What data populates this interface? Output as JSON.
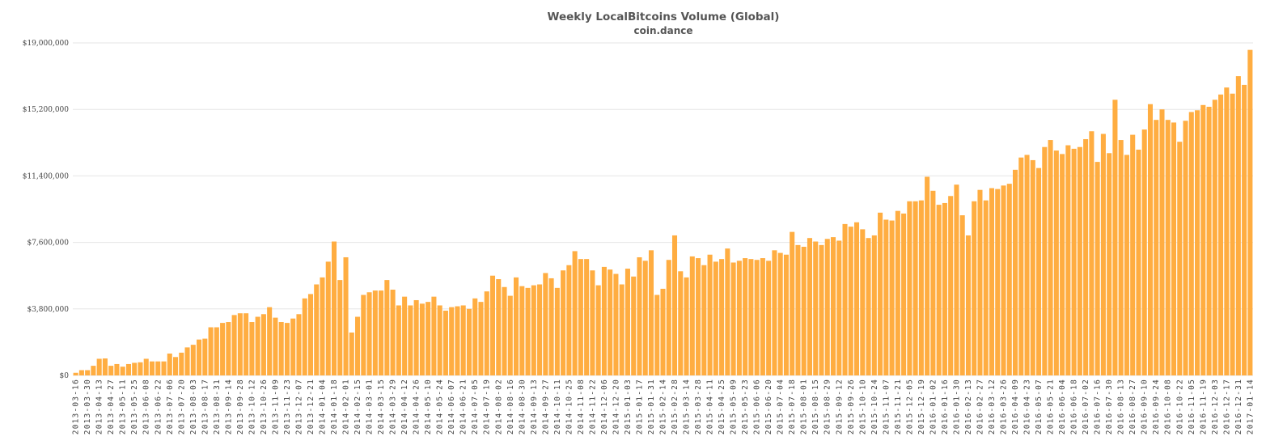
{
  "chart_data": {
    "type": "bar",
    "title": "Weekly LocalBitcoins Volume (Global)",
    "subtitle": "coin.dance",
    "xlabel": "",
    "ylabel": "",
    "ylim": [
      0,
      19000000
    ],
    "y_ticks": [
      "$0",
      "$3,800,000",
      "$7,600,000",
      "$11,400,000",
      "$15,200,000",
      "$19,000,000"
    ],
    "grid": true,
    "legend": "none",
    "bar_color": "#ffad41",
    "start_date": "2013-03-16",
    "interval_days": 7,
    "label_every": 2,
    "values_millions": [
      0.15,
      0.3,
      0.3,
      0.55,
      0.95,
      0.97,
      0.55,
      0.65,
      0.5,
      0.65,
      0.72,
      0.75,
      0.95,
      0.8,
      0.8,
      0.8,
      1.25,
      1.05,
      1.3,
      1.6,
      1.75,
      2.05,
      2.1,
      2.75,
      2.75,
      3.0,
      3.05,
      3.45,
      3.55,
      3.55,
      3.05,
      3.35,
      3.5,
      3.9,
      3.3,
      3.05,
      3.0,
      3.25,
      3.5,
      4.4,
      4.65,
      5.2,
      5.6,
      6.5,
      7.65,
      5.45,
      6.75,
      2.45,
      3.35,
      4.6,
      4.75,
      4.85,
      4.85,
      5.45,
      4.9,
      4.0,
      4.5,
      4.0,
      4.3,
      4.1,
      4.2,
      4.5,
      4.0,
      3.7,
      3.9,
      3.95,
      4.0,
      3.8,
      4.4,
      4.2,
      4.8,
      5.7,
      5.5,
      5.05,
      4.55,
      5.6,
      5.1,
      5.0,
      5.15,
      5.2,
      5.85,
      5.55,
      5.0,
      6.0,
      6.3,
      7.1,
      6.65,
      6.65,
      6.0,
      5.15,
      6.2,
      6.05,
      5.8,
      5.2,
      6.1,
      5.65,
      6.75,
      6.55,
      7.15,
      4.6,
      4.95,
      6.6,
      8.0,
      5.95,
      5.6,
      6.8,
      6.7,
      6.3,
      6.9,
      6.5,
      6.65,
      7.25,
      6.45,
      6.55,
      6.7,
      6.65,
      6.6,
      6.7,
      6.55,
      7.15,
      7.0,
      6.9,
      8.2,
      7.45,
      7.35,
      7.85,
      7.65,
      7.45,
      7.8,
      7.9,
      7.7,
      8.65,
      8.5,
      8.75,
      8.35,
      7.85,
      8.0,
      9.3,
      8.9,
      8.85,
      9.4,
      9.25,
      9.95,
      9.95,
      10.0,
      11.35,
      10.55,
      9.75,
      9.85,
      10.25,
      10.9,
      9.15,
      8.0,
      9.95,
      10.6,
      10.0,
      10.7,
      10.65,
      10.85,
      10.95,
      11.75,
      12.45,
      12.6,
      12.3,
      11.85,
      13.05,
      13.45,
      12.85,
      12.65,
      13.15,
      12.95,
      13.05,
      13.5,
      13.95,
      12.2,
      13.8,
      12.7,
      15.75,
      13.45,
      12.6,
      13.75,
      12.9,
      14.05,
      15.5,
      14.6,
      15.2,
      14.6,
      14.45,
      13.35,
      14.55,
      15.05,
      15.15,
      15.45,
      15.35,
      15.75,
      16.05,
      16.45,
      16.1,
      17.1,
      16.6,
      18.6
    ]
  }
}
